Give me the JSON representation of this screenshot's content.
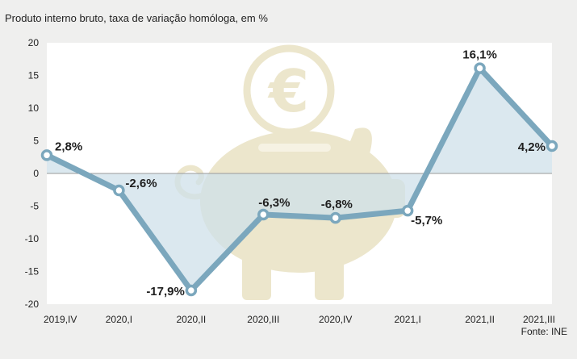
{
  "title": "Produto interno bruto, taxa de variação homóloga, em %",
  "source": "Fonte: INE",
  "colors": {
    "line": "#7ba7bd",
    "area": "#cfe0ea",
    "frame": "#efefee",
    "plot_bg": "#ffffff",
    "grid": "#bfbfbf",
    "watermark": "#ece6cc"
  },
  "decor": {
    "watermark_icon": "piggy-bank-euro-icon"
  },
  "chart_data": {
    "type": "line",
    "title": "Produto interno bruto, taxa de variação homóloga, em %",
    "xlabel": "",
    "ylabel": "",
    "categories": [
      "2019,IV",
      "2020,I",
      "2020,II",
      "2020,III",
      "2020,IV",
      "2021,I",
      "2021,II",
      "2021,III"
    ],
    "series": [
      {
        "values": [
          2.8,
          -2.6,
          -17.9,
          -6.3,
          -6.8,
          -5.7,
          16.1,
          4.2
        ]
      }
    ],
    "data_labels": [
      "2,8%",
      "-2,6%",
      "-17,9%",
      "-6,3%",
      "-6,8%",
      "-5,7%",
      "16,1%",
      "4,2%"
    ],
    "ylim": [
      -20,
      20
    ],
    "yticks": [
      20,
      15,
      10,
      5,
      0,
      -5,
      -10,
      -15,
      -20
    ],
    "grid": false,
    "zero_line": true
  }
}
